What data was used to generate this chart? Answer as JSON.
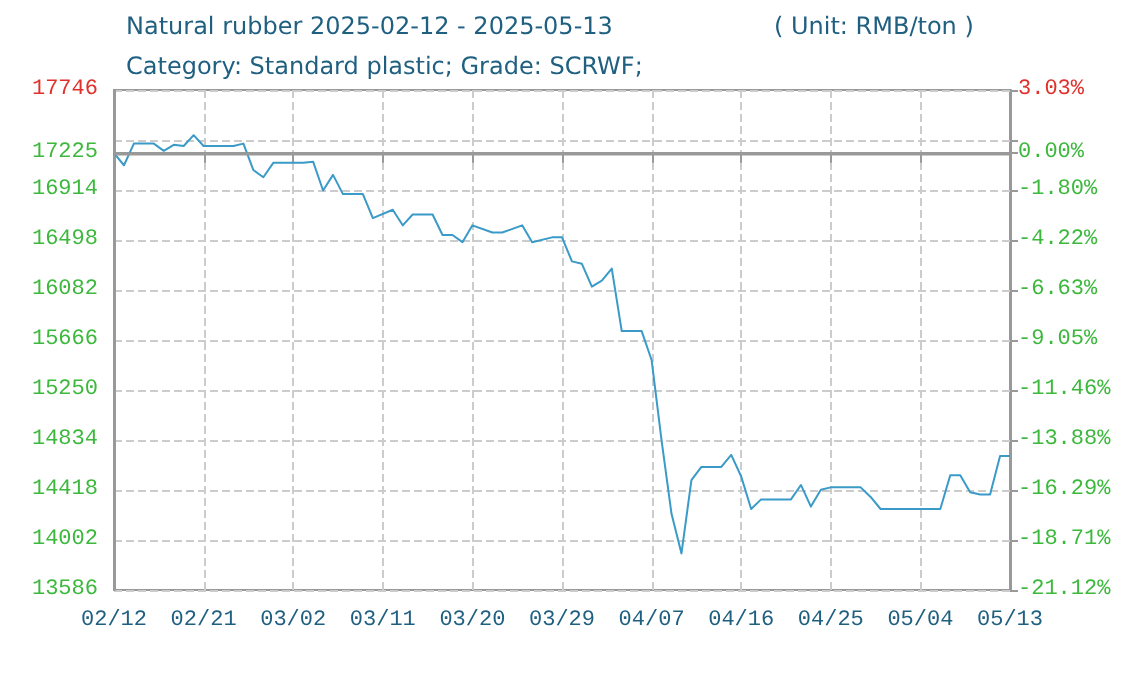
{
  "chart_data": {
    "type": "line",
    "title": "Natural rubber 2025-02-12 - 2025-05-13",
    "annotations": [
      "( Unit: RMB/ton )"
    ],
    "subtitle": "Category: Standard plastic; Grade: SCRWF;",
    "x": [
      "2025-02-12",
      "2025-02-13",
      "2025-02-14",
      "2025-02-16",
      "2025-02-17",
      "2025-02-18",
      "2025-02-19",
      "2025-02-20",
      "2025-02-21",
      "2025-02-24",
      "2025-02-25",
      "2025-02-26",
      "2025-02-27",
      "2025-02-28",
      "2025-03-03",
      "2025-03-04",
      "2025-03-05",
      "2025-03-06",
      "2025-03-07",
      "2025-03-09",
      "2025-03-10",
      "2025-03-12",
      "2025-03-13",
      "2025-03-14",
      "2025-03-16",
      "2025-03-17",
      "2025-03-18",
      "2025-03-19",
      "2025-03-20",
      "2025-03-22",
      "2025-03-23",
      "2025-03-25",
      "2025-03-26",
      "2025-03-28",
      "2025-03-29",
      "2025-03-30",
      "2025-03-31",
      "2025-04-01",
      "2025-04-02",
      "2025-04-03",
      "2025-04-04",
      "2025-04-06",
      "2025-04-07",
      "2025-04-08",
      "2025-04-09",
      "2025-04-10",
      "2025-04-11",
      "2025-04-12",
      "2025-04-14",
      "2025-04-15",
      "2025-04-16",
      "2025-04-17",
      "2025-04-18",
      "2025-04-21",
      "2025-04-22",
      "2025-04-23",
      "2025-04-24",
      "2025-04-25",
      "2025-04-28",
      "2025-04-29",
      "2025-04-30",
      "2025-05-06",
      "2025-05-07",
      "2025-05-08",
      "2025-05-09",
      "2025-05-10",
      "2025-05-11",
      "2025-05-12",
      "2025-05-13"
    ],
    "series": [
      {
        "color": "#3a9ac8",
        "values": [
          17220,
          17120,
          17300,
          17300,
          17240,
          17290,
          17280,
          17370,
          17280,
          17280,
          17300,
          17080,
          17020,
          17140,
          17140,
          17150,
          16910,
          17040,
          16880,
          16880,
          16680,
          16750,
          16620,
          16710,
          16710,
          16540,
          16540,
          16480,
          16620,
          16560,
          16560,
          16620,
          16480,
          16520,
          16520,
          16320,
          16300,
          16110,
          16160,
          16260,
          15740,
          15740,
          15500,
          14830,
          14220,
          13890,
          14500,
          14610,
          14610,
          14710,
          14530,
          14260,
          14340,
          14340,
          14460,
          14280,
          14420,
          14440,
          14440,
          14360,
          14260,
          14260,
          14540,
          14540,
          14400,
          14380,
          14380,
          14700,
          14700
        ]
      }
    ],
    "xlim": [
      "2025-02-12",
      "2025-05-13"
    ],
    "xticks": [
      {
        "value": "2025-02-12",
        "label": "02/12"
      },
      {
        "value": "2025-02-21",
        "label": "02/21"
      },
      {
        "value": "2025-03-02",
        "label": "03/02"
      },
      {
        "value": "2025-03-11",
        "label": "03/11"
      },
      {
        "value": "2025-03-20",
        "label": "03/20"
      },
      {
        "value": "2025-03-29",
        "label": "03/29"
      },
      {
        "value": "2025-04-07",
        "label": "04/07"
      },
      {
        "value": "2025-04-16",
        "label": "04/16"
      },
      {
        "value": "2025-04-25",
        "label": "04/25"
      },
      {
        "value": "2025-05-04",
        "label": "05/04"
      },
      {
        "value": "2025-05-13",
        "label": "05/13"
      }
    ],
    "ylim": [
      13586,
      17746
    ],
    "yticks": [
      13586,
      14002,
      14418,
      14834,
      15250,
      15666,
      16082,
      16498,
      16914,
      17225,
      {
        "value": 17330,
        "label": null
      },
      17746
    ],
    "y2lim": [
      -21.12,
      3.03
    ],
    "y2ticks": [
      {
        "value": -21.12,
        "label": "-21.12%"
      },
      {
        "value": -18.71,
        "label": "-18.71%"
      },
      {
        "value": -16.29,
        "label": "-16.29%"
      },
      {
        "value": -13.88,
        "label": "-13.88%"
      },
      {
        "value": -11.46,
        "label": "-11.46%"
      },
      {
        "value": -9.05,
        "label": "-9.05%"
      },
      {
        "value": -6.63,
        "label": "-6.63%"
      },
      {
        "value": -4.22,
        "label": "-4.22%"
      },
      {
        "value": -1.8,
        "label": "-1.80%"
      },
      {
        "value": 0,
        "label": "0.00%"
      },
      {
        "value": 0.61,
        "label": null
      },
      {
        "value": 3.03,
        "label": "3.03%"
      }
    ],
    "ref_lines": [
      {
        "axis": "y",
        "value": 17225,
        "color": "#999999",
        "line_style": "solid"
      }
    ],
    "grid": true,
    "marker": "none",
    "line_style": "solid"
  }
}
